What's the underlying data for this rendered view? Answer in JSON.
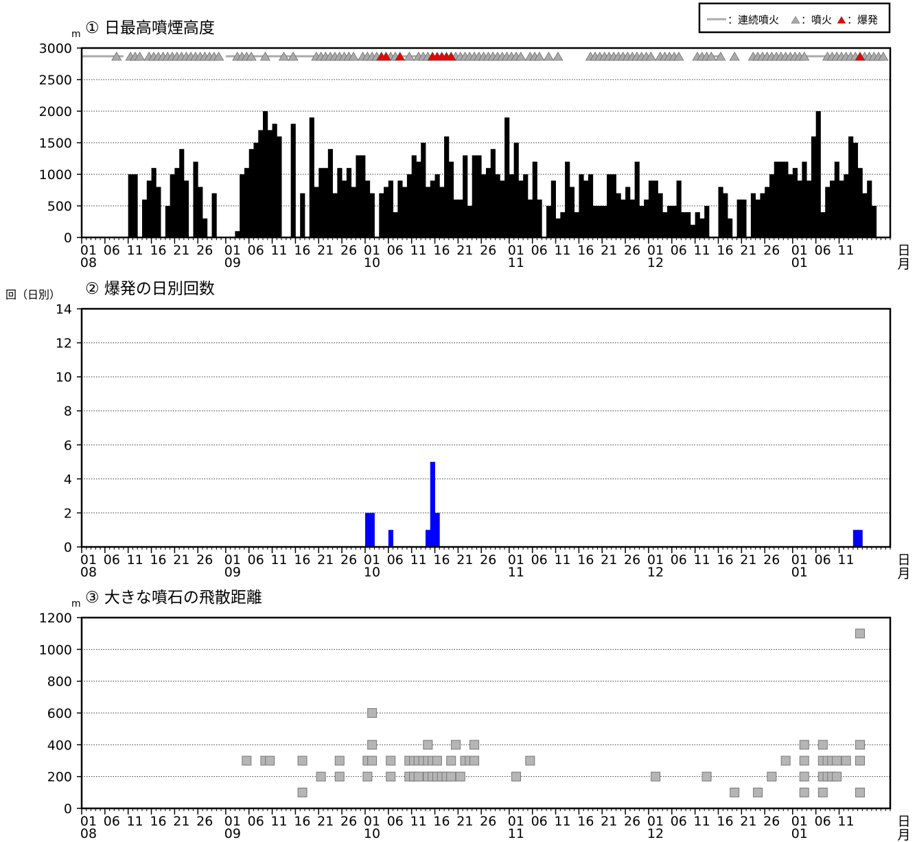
{
  "legend": {
    "continuous_label": "：連続噴火",
    "eruption_label": "：噴火",
    "explosion_label": "：爆発"
  },
  "axis": {
    "day_ticks": [
      "01",
      "06",
      "11",
      "16",
      "21",
      "26",
      "01",
      "06",
      "11",
      "16",
      "21",
      "26",
      "01",
      "06",
      "11",
      "16",
      "21",
      "26",
      "01",
      "06",
      "11",
      "16",
      "21",
      "26",
      "01",
      "06",
      "11",
      "16",
      "21",
      "26",
      "01",
      "06",
      "11"
    ],
    "month_labels": [
      "08",
      "09",
      "10",
      "11",
      "12",
      "01"
    ],
    "day_unit": "日",
    "month_unit": "月"
  },
  "chart_data": [
    {
      "type": "bar",
      "title": "① 日最高噴煙高度",
      "ylabel": "m",
      "ylim": [
        0,
        3000
      ],
      "yticks": [
        "0",
        "500",
        "1000",
        "1500",
        "2000",
        "2500",
        "3000"
      ],
      "grid": true,
      "legend_position": "top-right",
      "values": [
        0,
        0,
        0,
        0,
        0,
        0,
        0,
        0,
        0,
        0,
        1000,
        1000,
        0,
        600,
        900,
        1100,
        800,
        0,
        500,
        1000,
        1100,
        1400,
        900,
        0,
        1200,
        800,
        300,
        0,
        700,
        0,
        0,
        0,
        0,
        100,
        1000,
        1100,
        1400,
        1500,
        1700,
        2000,
        1700,
        1800,
        1600,
        0,
        0,
        1800,
        0,
        700,
        0,
        1900,
        800,
        1100,
        1100,
        1400,
        700,
        1100,
        900,
        1100,
        800,
        1300,
        1300,
        900,
        700,
        0,
        700,
        800,
        900,
        400,
        900,
        800,
        1000,
        1300,
        1200,
        1500,
        800,
        900,
        1000,
        800,
        1600,
        1200,
        600,
        600,
        1300,
        500,
        1300,
        1300,
        1000,
        1100,
        1400,
        1000,
        900,
        1900,
        1000,
        1500,
        900,
        1000,
        600,
        1200,
        600,
        0,
        500,
        900,
        300,
        400,
        1200,
        800,
        400,
        1000,
        900,
        1000,
        500,
        500,
        500,
        1000,
        1000,
        700,
        600,
        800,
        600,
        1200,
        500,
        600,
        900,
        900,
        700,
        400,
        500,
        500,
        900,
        400,
        400,
        200,
        400,
        300,
        500,
        0,
        0,
        800,
        700,
        300,
        0,
        600,
        600,
        0,
        700,
        600,
        700,
        800,
        1000,
        1200,
        1200,
        1200,
        1000,
        1100,
        900,
        1200,
        900,
        1600,
        2000,
        400,
        800,
        900,
        1200,
        900,
        1000,
        1600,
        1500,
        1100,
        700,
        900,
        500
      ],
      "markers": {
        "continuous_days": [
          [
            0,
            8
          ],
          [
            31,
            53
          ],
          [
            64,
            76
          ],
          [
            77,
            82
          ],
          [
            111,
            116
          ],
          [
            135,
            137
          ],
          [
            146,
            150
          ],
          [
            153,
            160
          ]
        ],
        "eruption_days": [
          7,
          10,
          11,
          12,
          14,
          15,
          16,
          17,
          18,
          19,
          20,
          21,
          22,
          23,
          24,
          25,
          26,
          27,
          28,
          29,
          33,
          34,
          35,
          36,
          39,
          43,
          45,
          50,
          51,
          52,
          53,
          54,
          55,
          56,
          57,
          58,
          60,
          61,
          62,
          63,
          64,
          65,
          66,
          67,
          70,
          72,
          73,
          74,
          75,
          77,
          79,
          80,
          81,
          82,
          83,
          84,
          85,
          86,
          87,
          88,
          89,
          90,
          91,
          92,
          93,
          94,
          96,
          97,
          98,
          100,
          102,
          109,
          110,
          111,
          112,
          113,
          114,
          115,
          116,
          117,
          118,
          119,
          120,
          121,
          122,
          124,
          125,
          126,
          127,
          128,
          132,
          133,
          134,
          135,
          137,
          140,
          144,
          145,
          146,
          147,
          148,
          149,
          150,
          151,
          152,
          153,
          154,
          155,
          160,
          161,
          162,
          163,
          164,
          165,
          166,
          167,
          168,
          169,
          170,
          171,
          172
        ],
        "explosion_days": [
          64,
          65,
          68,
          75,
          76,
          77,
          78,
          79,
          167
        ]
      }
    },
    {
      "type": "bar",
      "title": "② 爆発の日別回数",
      "ylabel": "回（日別）",
      "ylim": [
        0,
        14
      ],
      "yticks": [
        "0",
        "2",
        "4",
        "6",
        "8",
        "10",
        "12",
        "14"
      ],
      "grid": true,
      "points": [
        [
          61,
          2
        ],
        [
          62,
          2
        ],
        [
          66,
          1
        ],
        [
          74,
          1
        ],
        [
          75,
          5
        ],
        [
          76,
          2
        ],
        [
          166,
          1
        ],
        [
          167,
          1
        ]
      ]
    },
    {
      "type": "scatter",
      "title": "③ 大きな噴石の飛散距離",
      "ylabel": "m",
      "ylim": [
        0,
        1200
      ],
      "yticks": [
        "0",
        "200",
        "400",
        "600",
        "800",
        "1000",
        "1200"
      ],
      "grid": true,
      "points": [
        [
          35,
          300
        ],
        [
          39,
          300
        ],
        [
          40,
          300
        ],
        [
          47,
          100
        ],
        [
          47,
          300
        ],
        [
          51,
          200
        ],
        [
          55,
          200
        ],
        [
          55,
          300
        ],
        [
          61,
          200
        ],
        [
          61,
          300
        ],
        [
          62,
          300
        ],
        [
          62,
          400
        ],
        [
          62,
          600
        ],
        [
          66,
          200
        ],
        [
          66,
          300
        ],
        [
          70,
          200
        ],
        [
          70,
          300
        ],
        [
          71,
          200
        ],
        [
          71,
          300
        ],
        [
          72,
          200
        ],
        [
          72,
          300
        ],
        [
          73,
          300
        ],
        [
          74,
          200
        ],
        [
          74,
          300
        ],
        [
          74,
          400
        ],
        [
          75,
          200
        ],
        [
          75,
          300
        ],
        [
          76,
          200
        ],
        [
          76,
          300
        ],
        [
          77,
          200
        ],
        [
          78,
          200
        ],
        [
          79,
          200
        ],
        [
          79,
          300
        ],
        [
          80,
          400
        ],
        [
          81,
          200
        ],
        [
          82,
          300
        ],
        [
          83,
          300
        ],
        [
          84,
          400
        ],
        [
          84,
          300
        ],
        [
          93,
          200
        ],
        [
          96,
          300
        ],
        [
          123,
          200
        ],
        [
          134,
          200
        ],
        [
          140,
          100
        ],
        [
          145,
          100
        ],
        [
          148,
          200
        ],
        [
          151,
          300
        ],
        [
          155,
          100
        ],
        [
          155,
          200
        ],
        [
          155,
          300
        ],
        [
          155,
          400
        ],
        [
          159,
          100
        ],
        [
          159,
          200
        ],
        [
          159,
          300
        ],
        [
          159,
          400
        ],
        [
          160,
          200
        ],
        [
          160,
          300
        ],
        [
          161,
          200
        ],
        [
          161,
          300
        ],
        [
          162,
          200
        ],
        [
          162,
          300
        ],
        [
          164,
          300
        ],
        [
          167,
          100
        ],
        [
          167,
          300
        ],
        [
          167,
          400
        ],
        [
          167,
          1100
        ]
      ]
    }
  ]
}
